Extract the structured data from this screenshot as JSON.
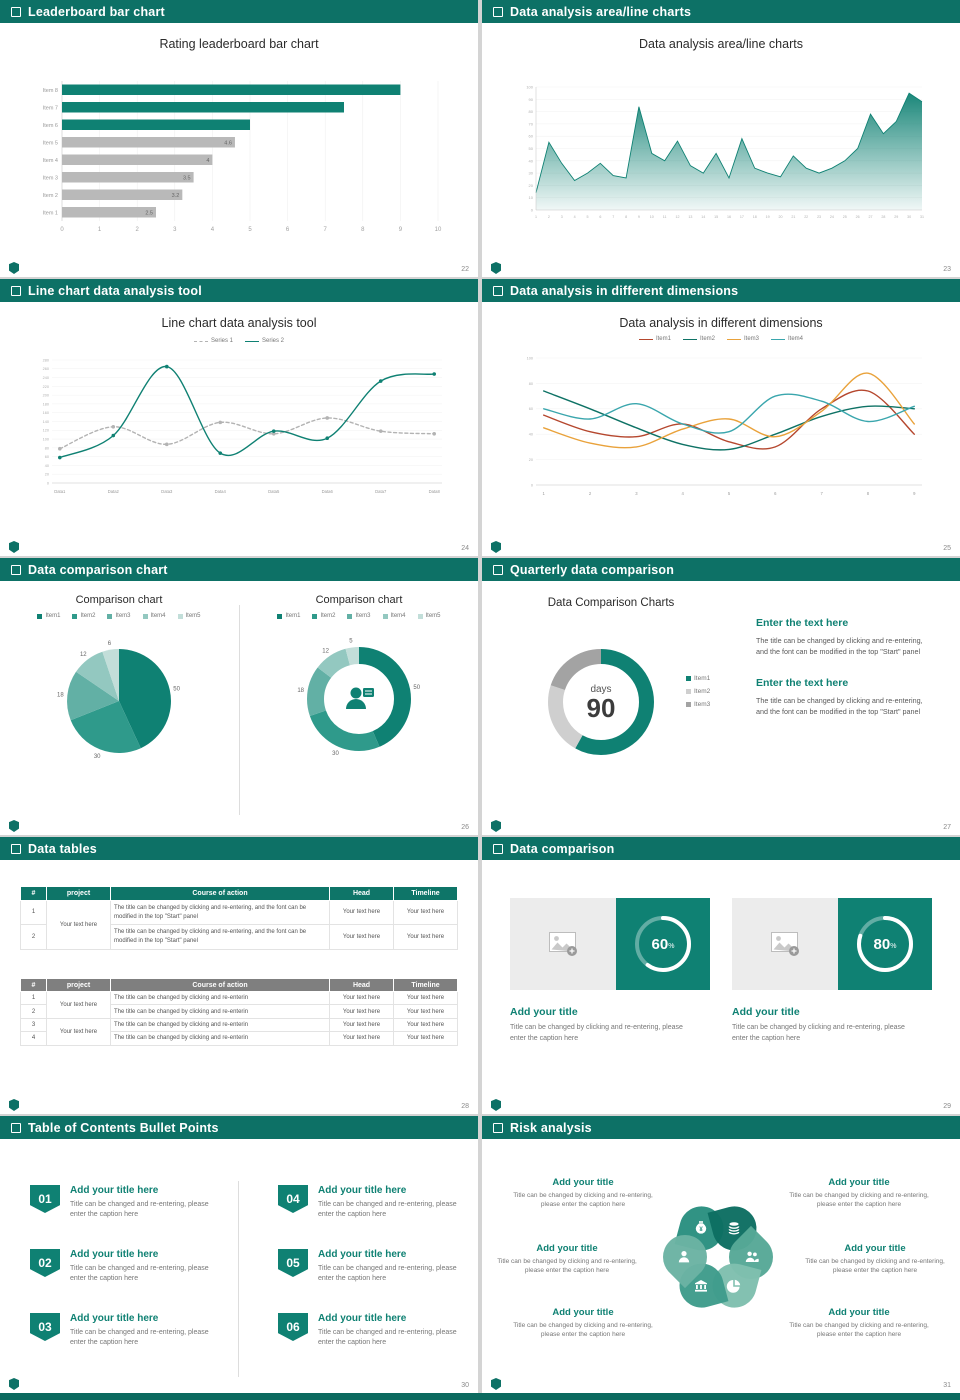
{
  "page": {
    "footer_bar_color": "#0b6a5f"
  },
  "slides": [
    {
      "header": "Leaderboard bar chart",
      "page_number": "22",
      "title": "Rating leaderboard bar chart",
      "chart_data": {
        "type": "bar",
        "orientation": "horizontal",
        "categories": [
          "Item 1",
          "Item 2",
          "Item 3",
          "Item 4",
          "Item 5",
          "Item 6",
          "Item 7",
          "Item 8"
        ],
        "values": [
          2.5,
          3.2,
          3.5,
          4,
          4.6,
          5,
          7.5,
          9
        ],
        "data_labels": [
          "2.5",
          "3.2",
          "3.5",
          "4",
          "4.6",
          "",
          "",
          ""
        ],
        "bar_colors": [
          "#b9b9b9",
          "#b9b9b9",
          "#b9b9b9",
          "#b9b9b9",
          "#b9b9b9",
          "#0f8173",
          "#0f8173",
          "#0f8173"
        ],
        "xlim": [
          0,
          10
        ],
        "xticks": [
          0,
          1,
          2,
          3,
          4,
          5,
          6,
          7,
          8,
          9,
          10
        ]
      }
    },
    {
      "header": "Data analysis area/line charts",
      "page_number": "23",
      "title": "Data analysis area/line charts",
      "chart_data": {
        "type": "area",
        "color": "#0f8173",
        "x": [
          1,
          2,
          3,
          4,
          5,
          6,
          7,
          8,
          9,
          10,
          11,
          12,
          13,
          14,
          15,
          16,
          17,
          18,
          19,
          20,
          21,
          22,
          23,
          24,
          25,
          26,
          27,
          28,
          29,
          30,
          31
        ],
        "values": [
          14,
          55,
          38,
          24,
          30,
          38,
          28,
          26,
          84,
          46,
          40,
          56,
          36,
          30,
          46,
          26,
          58,
          34,
          30,
          27,
          44,
          34,
          30,
          34,
          40,
          50,
          78,
          62,
          72,
          95,
          88
        ],
        "ylim": [
          0,
          100
        ],
        "ystep": 10
      }
    },
    {
      "header": "Line chart data analysis tool",
      "page_number": "24",
      "title": "Line chart data analysis tool",
      "chart_data": {
        "type": "line",
        "markers": true,
        "smooth": true,
        "categories": [
          "Data1",
          "Data2",
          "Data3",
          "Data4",
          "Data5",
          "Data6",
          "Data7",
          "Data8"
        ],
        "series": [
          {
            "name": "Series 1",
            "color": "#b3b3b3",
            "dash": true,
            "values": [
              78,
              128,
              88,
              138,
              112,
              148,
              118,
              112
            ]
          },
          {
            "name": "Series 2",
            "color": "#0f8173",
            "dash": false,
            "values": [
              58,
              108,
              265,
              68,
              118,
              102,
              232,
              248
            ]
          }
        ],
        "ylim": [
          0,
          280
        ],
        "ystep": 20
      }
    },
    {
      "header": "Data analysis in different dimensions",
      "page_number": "25",
      "title": "Data analysis in different dimensions",
      "chart_data": {
        "type": "line",
        "markers": false,
        "smooth": true,
        "categories": [
          "1",
          "2",
          "3",
          "4",
          "5",
          "6",
          "7",
          "8",
          "9"
        ],
        "series": [
          {
            "name": "Item1",
            "color": "#b5472e",
            "dash": false,
            "values": [
              55,
              42,
              38,
              48,
              34,
              30,
              60,
              74,
              40
            ]
          },
          {
            "name": "Item2",
            "color": "#0e7265",
            "dash": false,
            "values": [
              74,
              60,
              45,
              32,
              28,
              40,
              54,
              62,
              60
            ]
          },
          {
            "name": "Item3",
            "color": "#e9a23b",
            "dash": false,
            "values": [
              45,
              33,
              30,
              44,
              52,
              38,
              58,
              88,
              48
            ]
          },
          {
            "name": "Item4",
            "color": "#3aa6ad",
            "dash": false,
            "values": [
              60,
              52,
              64,
              48,
              42,
              70,
              66,
              50,
              62
            ]
          }
        ],
        "ylim": [
          0,
          100
        ],
        "ystep": 20
      }
    },
    {
      "header": "Data comparison chart",
      "page_number": "26",
      "left": {
        "title": "Comparison chart",
        "legend": [
          "Item1",
          "Item2",
          "Item3",
          "Item4",
          "Item5"
        ],
        "chart_data": {
          "type": "pie",
          "values": [
            50,
            30,
            18,
            12,
            6
          ],
          "labels": [
            "50",
            "30",
            "18",
            "12",
            "6"
          ],
          "colors": [
            "#0f8173",
            "#2f9a8b",
            "#62b0a5",
            "#93c8c0",
            "#c2ded9"
          ],
          "pad": 14
        }
      },
      "right": {
        "title": "Comparison chart",
        "legend": [
          "Item1",
          "Item2",
          "Item3",
          "Item4",
          "Item5"
        ],
        "chart_data": {
          "type": "donut",
          "values": [
            50,
            30,
            18,
            12,
            5
          ],
          "labels": [
            "50",
            "30",
            "18",
            "12",
            "5"
          ],
          "colors": [
            "#0f8173",
            "#2f9a8b",
            "#62b0a5",
            "#93c8c0",
            "#c2ded9"
          ],
          "pad": 14,
          "thickness": 17
        }
      }
    },
    {
      "header": "Quarterly data comparison",
      "page_number": "27",
      "title": "Data Comparison Charts",
      "center_label": "days",
      "center_value": "90",
      "legend": [
        "Item1",
        "Item2",
        "Item3"
      ],
      "legend_colors": [
        "#0f8173",
        "#cfcfcf",
        "#a3a3a3"
      ],
      "chart_data": {
        "type": "donut",
        "values": [
          58,
          22,
          20
        ],
        "colors": [
          "#0f8173",
          "#cfcfcf",
          "#a3a3a3"
        ],
        "pad": 22,
        "thickness": 15
      },
      "blocks": [
        {
          "heading": "Enter the text here",
          "body": "The title can be changed by clicking and re-entering, and the font can be modified in the top \"Start\" panel"
        },
        {
          "heading": "Enter the text here",
          "body": "The title can be changed by clicking and re-entering, and the font can be modified in the top \"Start\" panel"
        }
      ]
    },
    {
      "header": "Data tables",
      "page_number": "28",
      "table1": {
        "headers": [
          "#",
          "project",
          "Course of action",
          "Head",
          "Timeline"
        ],
        "project": "Your text here",
        "rows": [
          [
            "1",
            "The title can be changed by clicking and re-entering, and the font can be modified in the top \"Start\" panel",
            "Your text here",
            "Your text here"
          ],
          [
            "2",
            "The title can be changed by clicking and re-entering, and the font can be modified in the top \"Start\" panel",
            "Your text here",
            "Your text here"
          ]
        ]
      },
      "table2": {
        "headers": [
          "#",
          "project",
          "Course of action",
          "Head",
          "Timeline"
        ],
        "project": "Your text here",
        "rows": [
          [
            "1",
            "The title can be changed by clicking and re-enterin",
            "Your text here",
            "Your text here"
          ],
          [
            "2",
            "The title can be changed by clicking and re-enterin",
            "Your text here",
            "Your text here"
          ],
          [
            "3",
            "The title can be changed by clicking and re-enterin",
            "Your text here",
            "Your text here"
          ],
          [
            "4",
            "The title can be changed by clicking and re-enterin",
            "Your text here",
            "Your text here"
          ]
        ]
      }
    },
    {
      "header": "Data comparison",
      "page_number": "29",
      "cards": [
        {
          "ring": {
            "type": "ring",
            "percent": 60
          },
          "title": "Add your title",
          "caption": "Title can be changed by clicking and re-entering, please enter the caption here"
        },
        {
          "ring": {
            "type": "ring",
            "percent": 80
          },
          "title": "Add your title",
          "caption": "Title can be changed by clicking and re-entering, please enter the caption here"
        }
      ]
    },
    {
      "header": "Table of Contents Bullet Points",
      "page_number": "30",
      "items": [
        {
          "number": "01",
          "title": "Add your title here",
          "caption": "Title can be changed and re-entering, please enter the caption here"
        },
        {
          "number": "02",
          "title": "Add your title here",
          "caption": "Title can be changed and re-entering, please enter the caption here"
        },
        {
          "number": "03",
          "title": "Add your title here",
          "caption": "Title can be changed and re-entering, please enter the caption here"
        },
        {
          "number": "04",
          "title": "Add your title here",
          "caption": "Title can be changed and re-entering, please enter the caption here"
        },
        {
          "number": "05",
          "title": "Add your title here",
          "caption": "Title can be changed and re-entering, please enter the caption here"
        },
        {
          "number": "06",
          "title": "Add your title here",
          "caption": "Title can be changed and re-entering, please enter the caption here"
        }
      ]
    },
    {
      "header": "Risk analysis",
      "page_number": "31",
      "icons": [
        "money-bag",
        "coins",
        "person",
        "people",
        "bank",
        "pie-chart"
      ],
      "labels": [
        {
          "title": "Add your title",
          "caption": "Title can be changed by clicking and re-entering, please enter the caption here"
        },
        {
          "title": "Add your title",
          "caption": "Title can be changed by clicking and re-entering, please enter the caption here"
        },
        {
          "title": "Add your title",
          "caption": "Title can be changed by clicking and re-entering, please enter the caption here"
        },
        {
          "title": "Add your title",
          "caption": "Title can be changed by clicking and re-entering, please enter the caption here"
        },
        {
          "title": "Add your title",
          "caption": "Title can be changed by clicking and re-entering, please enter the caption here"
        },
        {
          "title": "Add your title",
          "caption": "Title can be changed by clicking and re-entering, please enter the caption here"
        }
      ]
    }
  ]
}
